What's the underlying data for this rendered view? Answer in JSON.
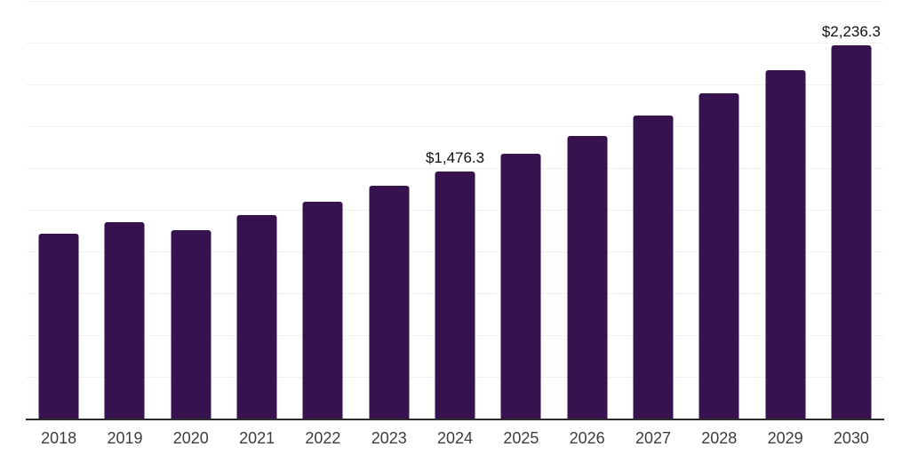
{
  "chart_data": {
    "type": "bar",
    "title": "",
    "xlabel": "",
    "ylabel": "",
    "legend": "none",
    "grid": "horizontal",
    "categories": [
      "2018",
      "2019",
      "2020",
      "2021",
      "2022",
      "2023",
      "2024",
      "2025",
      "2026",
      "2027",
      "2028",
      "2029",
      "2030"
    ],
    "values": [
      1107,
      1177,
      1130,
      1216,
      1298,
      1392,
      1476.3,
      1584,
      1693,
      1815,
      1945,
      2086,
      2236.3
    ],
    "data_labels": [
      null,
      null,
      null,
      null,
      null,
      null,
      "$1,476.3",
      null,
      null,
      null,
      null,
      null,
      "$2,236.3"
    ],
    "ylim": [
      0,
      2500
    ],
    "gridline_step": 250,
    "colors": {
      "bar": "#36134e",
      "gridline": "#f2f2f2",
      "axis_line": "#2e2e2e",
      "tick_label": "#3d3d3d",
      "data_label": "#111111",
      "background": "#ffffff"
    }
  }
}
